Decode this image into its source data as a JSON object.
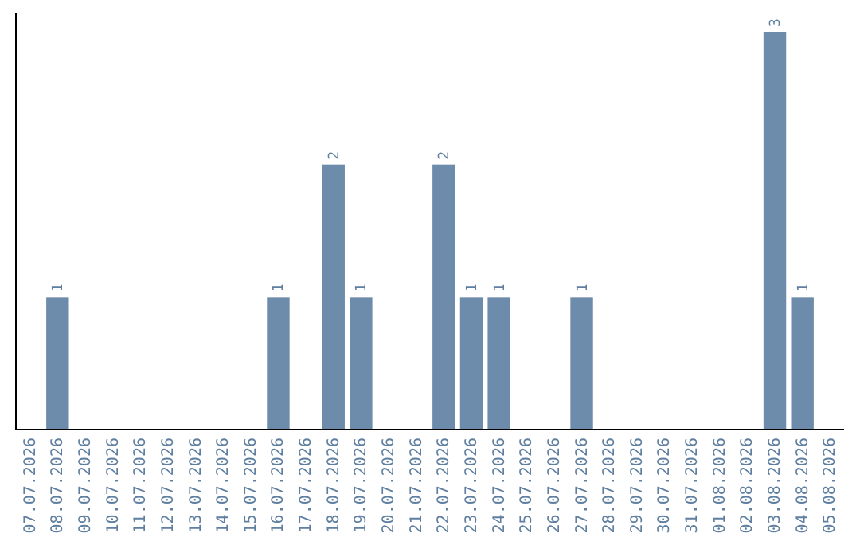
{
  "chart_data": {
    "type": "bar",
    "categories": [
      "07.07.2026",
      "08.07.2026",
      "09.07.2026",
      "10.07.2026",
      "11.07.2026",
      "12.07.2026",
      "13.07.2026",
      "14.07.2026",
      "15.07.2026",
      "16.07.2026",
      "17.07.2026",
      "18.07.2026",
      "19.07.2026",
      "20.07.2026",
      "21.07.2026",
      "22.07.2026",
      "23.07.2026",
      "24.07.2026",
      "25.07.2026",
      "26.07.2026",
      "27.07.2026",
      "28.07.2026",
      "29.07.2026",
      "30.07.2026",
      "31.07.2026",
      "01.08.2026",
      "02.08.2026",
      "03.08.2026",
      "04.08.2026",
      "05.08.2026"
    ],
    "values": [
      0,
      1,
      0,
      0,
      0,
      0,
      0,
      0,
      0,
      1,
      0,
      2,
      1,
      0,
      0,
      2,
      1,
      1,
      0,
      0,
      1,
      0,
      0,
      0,
      0,
      0,
      0,
      3,
      1,
      0
    ],
    "value_labels": [
      null,
      "1",
      null,
      null,
      null,
      null,
      null,
      null,
      null,
      "1",
      null,
      "2",
      "1",
      null,
      null,
      "2",
      "1",
      "1",
      null,
      null,
      "1",
      null,
      null,
      null,
      null,
      null,
      null,
      "3",
      "1",
      null
    ],
    "color": "#6d8cac"
  }
}
